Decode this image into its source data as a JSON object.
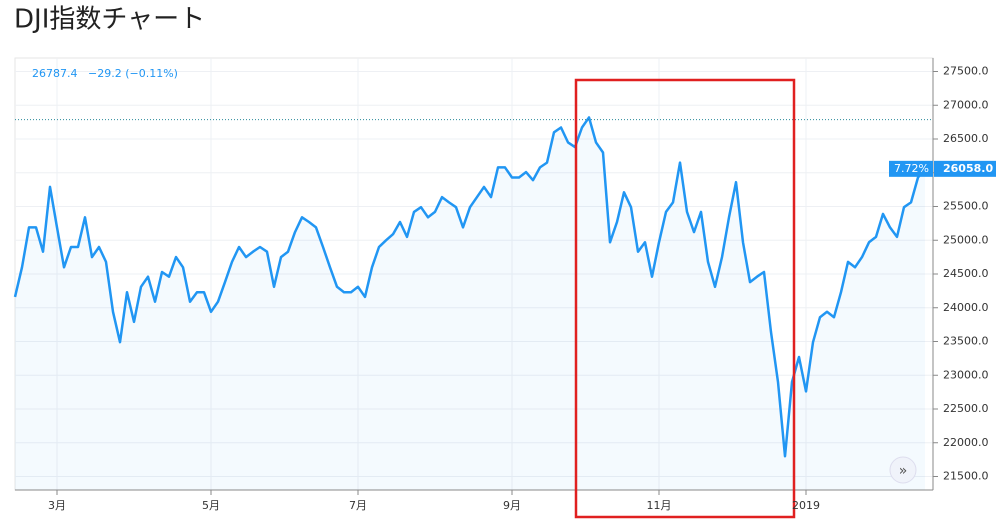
{
  "chart_data": {
    "type": "line",
    "title": "DJI指数チャート",
    "info": {
      "price": "26787.4",
      "change": "−29.2 (−0.11%)"
    },
    "badge": {
      "percent": "7.72%",
      "price": {
        "value": 26058,
        "label": "26058.0"
      }
    },
    "reference_line": 26787.4,
    "color": "#2196f3",
    "grid": true,
    "ylim": [
      21300,
      27700
    ],
    "yticks": [
      {
        "value": 21500,
        "label": "21500.0"
      },
      {
        "value": 22000,
        "label": "22000.0"
      },
      {
        "value": 22500,
        "label": "22500.0"
      },
      {
        "value": 23000,
        "label": "23000.0"
      },
      {
        "value": 23500,
        "label": "23500.0"
      },
      {
        "value": 24000,
        "label": "24000.0"
      },
      {
        "value": 24500,
        "label": "24500.0"
      },
      {
        "value": 25000,
        "label": "25000.0"
      },
      {
        "value": 25500,
        "label": "25500.0"
      },
      {
        "value": 26000,
        "label": "26000.0"
      },
      {
        "value": 26500,
        "label": "26500.0"
      },
      {
        "value": 27000,
        "label": "27000.0"
      },
      {
        "value": 27500,
        "label": "27500.0"
      }
    ],
    "categories": [
      null,
      null,
      null,
      null,
      null,
      null,
      "3月",
      null,
      null,
      null,
      null,
      null,
      null,
      null,
      null,
      null,
      null,
      null,
      null,
      null,
      null,
      null,
      null,
      null,
      null,
      null,
      null,
      null,
      "5月",
      null,
      null,
      null,
      null,
      null,
      null,
      null,
      null,
      null,
      null,
      null,
      null,
      null,
      null,
      null,
      null,
      null,
      null,
      null,
      null,
      "7月",
      null,
      null,
      null,
      null,
      null,
      null,
      null,
      null,
      null,
      null,
      null,
      null,
      null,
      null,
      null,
      null,
      null,
      null,
      null,
      null,
      null,
      "9月",
      null,
      null,
      null,
      null,
      null,
      null,
      null,
      null,
      null,
      null,
      null,
      null,
      null,
      null,
      null,
      null,
      null,
      null,
      null,
      null,
      "11月",
      null,
      null,
      null,
      null,
      null,
      null,
      null,
      null,
      null,
      null,
      null,
      null,
      null,
      null,
      null,
      null,
      null,
      null,
      null,
      null,
      "2019",
      null,
      null,
      null,
      null,
      null,
      null,
      null,
      null,
      null,
      null,
      null,
      null,
      null,
      null,
      null,
      null,
      null
    ],
    "values": [
      24160,
      24600,
      25190,
      25190,
      24830,
      25790,
      25190,
      24600,
      24900,
      24900,
      25340,
      24750,
      24900,
      24680,
      23940,
      23490,
      24230,
      23790,
      24310,
      24460,
      24090,
      24530,
      24460,
      24750,
      24600,
      24090,
      24230,
      24230,
      23940,
      24090,
      24380,
      24680,
      24900,
      24750,
      24830,
      24900,
      24830,
      24310,
      24750,
      24830,
      25120,
      25340,
      25270,
      25190,
      24900,
      24600,
      24310,
      24230,
      24230,
      24310,
      24160,
      24600,
      24900,
      25000,
      25090,
      25270,
      25050,
      25420,
      25490,
      25340,
      25420,
      25640,
      25560,
      25490,
      25190,
      25490,
      25640,
      25790,
      25640,
      26080,
      26080,
      25930,
      25930,
      26010,
      25890,
      26080,
      26150,
      26600,
      26670,
      26450,
      26380,
      26670,
      26820,
      26450,
      26300,
      24970,
      25270,
      25710,
      25490,
      24830,
      24970,
      24460,
      24970,
      25420,
      25560,
      26150,
      25420,
      25120,
      25420,
      24680,
      24310,
      24750,
      25340,
      25860,
      24970,
      24380,
      24460,
      24530,
      23640,
      22900,
      21800,
      22900,
      23270,
      22760,
      23490,
      23860,
      23940,
      23860,
      24230,
      24680,
      24600,
      24750,
      24970,
      25050,
      25390,
      25190,
      25050,
      25490,
      25560,
      25930,
      26058
    ]
  }
}
